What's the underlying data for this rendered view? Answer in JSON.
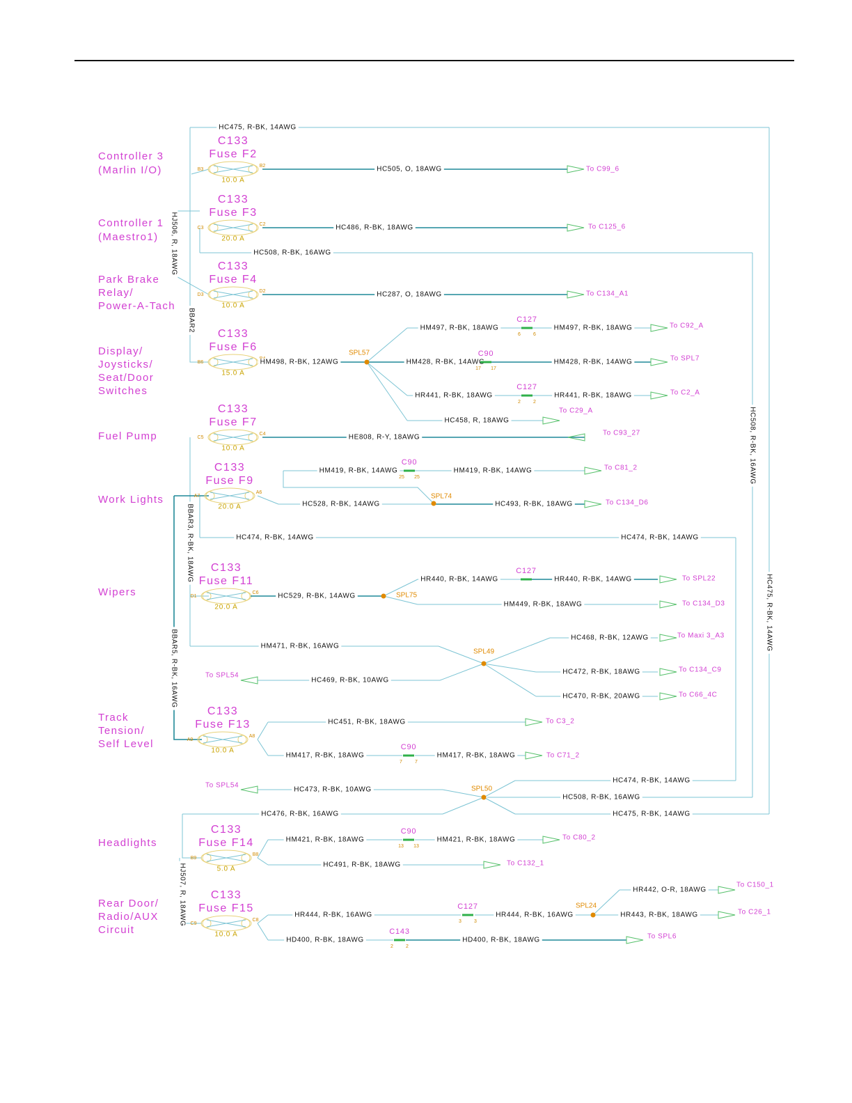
{
  "circuits": [
    [
      "Controller 3",
      "(Marlin I/O)"
    ],
    [
      "Controller 1",
      "(Maestro1)"
    ],
    [
      "Park Brake",
      "Relay/",
      "Power-A-Tach"
    ],
    [
      "Display/",
      "Joysticks/",
      "Seat/Door",
      "Switches"
    ],
    [
      "Fuel Pump"
    ],
    [
      "Work Lights"
    ],
    [
      "Wipers"
    ],
    [
      "Track",
      "Tension/",
      "Self Level"
    ],
    [
      "Headlights"
    ],
    [
      "Rear Door/",
      "Radio/AUX",
      "Circuit"
    ]
  ],
  "fuses": [
    {
      "connector": "C133",
      "name": "Fuse F2",
      "rating": "10.0 A",
      "pins": [
        "B3",
        "B2"
      ]
    },
    {
      "connector": "C133",
      "name": "Fuse F3",
      "rating": "20.0 A",
      "pins": [
        "C3",
        "C2"
      ]
    },
    {
      "connector": "C133",
      "name": "Fuse F4",
      "rating": "10.0 A",
      "pins": [
        "D3",
        "D2"
      ]
    },
    {
      "connector": "C133",
      "name": "Fuse F6",
      "rating": "15.0 A",
      "pins": [
        "B6",
        "B4"
      ]
    },
    {
      "connector": "C133",
      "name": "Fuse F7",
      "rating": "10.0 A",
      "pins": [
        "C5",
        "C4"
      ]
    },
    {
      "connector": "C133",
      "name": "Fuse F9",
      "rating": "20.0 A",
      "pins": [
        "A7",
        "A6"
      ]
    },
    {
      "connector": "C133",
      "name": "Fuse F11",
      "rating": "20.0 A",
      "pins": [
        "D1",
        "C6"
      ]
    },
    {
      "connector": "C133",
      "name": "Fuse F13",
      "rating": "10.0 A",
      "pins": [
        "A9",
        "A8"
      ]
    },
    {
      "connector": "C133",
      "name": "Fuse F14",
      "rating": "5.0 A",
      "pins": [
        "B9",
        "B8"
      ]
    },
    {
      "connector": "C133",
      "name": "Fuse F15",
      "rating": "10.0 A",
      "pins": [
        "C9",
        "C8"
      ]
    }
  ],
  "wires": [
    "HC475, R-BK, 14AWG",
    "HC505, O, 18AWG",
    "HC486, R-BK, 18AWG",
    "HC508, R-BK, 16AWG",
    "HC287, O, 18AWG",
    "HM498, R-BK, 12AWG",
    "HM497, R-BK, 18AWG",
    "HM497, R-BK, 18AWG",
    "HM428, R-BK, 14AWG",
    "HM428, R-BK, 14AWG",
    "HR441, R-BK, 18AWG",
    "HR441, R-BK, 18AWG",
    "HC458, R, 18AWG",
    "HE808, R-Y, 18AWG",
    "HM419, R-BK, 14AWG",
    "HM419, R-BK, 14AWG",
    "HC528, R-BK, 14AWG",
    "HC493, R-BK, 18AWG",
    "HC474, R-BK, 14AWG",
    "HC474, R-BK, 14AWG",
    "HC529, R-BK, 14AWG",
    "HR440, R-BK, 14AWG",
    "HR440, R-BK, 14AWG",
    "HM449, R-BK, 18AWG",
    "HM471, R-BK, 16AWG",
    "HC469, R-BK, 10AWG",
    "HC468, R-BK, 12AWG",
    "HC472, R-BK, 18AWG",
    "HC470, R-BK, 20AWG",
    "HC451, R-BK, 18AWG",
    "HM417, R-BK, 18AWG",
    "HM417, R-BK, 18AWG",
    "HC473, R-BK, 10AWG",
    "HC474, R-BK, 14AWG",
    "HC508, R-BK, 16AWG",
    "HC475, R-BK, 14AWG",
    "HC476, R-BK, 16AWG",
    "HM421, R-BK, 18AWG",
    "HM421, R-BK, 18AWG",
    "HC491, R-BK, 18AWG",
    "HR444, R-BK, 16AWG",
    "HR444, R-BK, 16AWG",
    "HR442, O-R, 18AWG",
    "HR443, R-BK, 18AWG",
    "HD400, R-BK, 18AWG",
    "HD400, R-BK, 18AWG"
  ],
  "destinations": [
    "To C99_6",
    "To C125_6",
    "To C134_A1",
    "To C92_A",
    "To SPL7",
    "To C2_A",
    "To C29_A",
    "To C93_27",
    "To C81_2",
    "To C134_D6",
    "To SPL22",
    "To C134_D3",
    "To Maxi 3_A3",
    "To C134_C9",
    "To C66_4C",
    "To SPL54",
    "To C3_2",
    "To C71_2",
    "To SPL54",
    "To C80_2",
    "To C132_1",
    "To C150_1",
    "To C26_1",
    "To SPL6"
  ],
  "inline_connectors": [
    {
      "name": "C127",
      "pins": [
        "6",
        "6"
      ]
    },
    {
      "name": "C90",
      "pins": [
        "17",
        "17"
      ]
    },
    {
      "name": "C127",
      "pins": [
        "2",
        "2"
      ]
    },
    {
      "name": "C90",
      "pins": [
        "25",
        "25"
      ]
    },
    {
      "name": "C127"
    },
    {
      "name": "C90",
      "pins": [
        "7",
        "7"
      ]
    },
    {
      "name": "C90",
      "pins": [
        "13",
        "13"
      ]
    },
    {
      "name": "C127",
      "pins": [
        "3",
        "3"
      ]
    },
    {
      "name": "C143",
      "pins": [
        "2",
        "2"
      ]
    }
  ],
  "splices": [
    "SPL57",
    "SPL74",
    "SPL75",
    "SPL49",
    "SPL50",
    "SPL24"
  ],
  "vertical_labels": [
    "HJ506, R, 18AWG",
    "BBAR2",
    "BBAR3, R-BK, 18AWG",
    "BBAR5, R-BK, 16AWG",
    "HC508, R-BK, 16AWG",
    "HC475, R-BK, 14AWG",
    "HJ507, R, 18AWG"
  ]
}
